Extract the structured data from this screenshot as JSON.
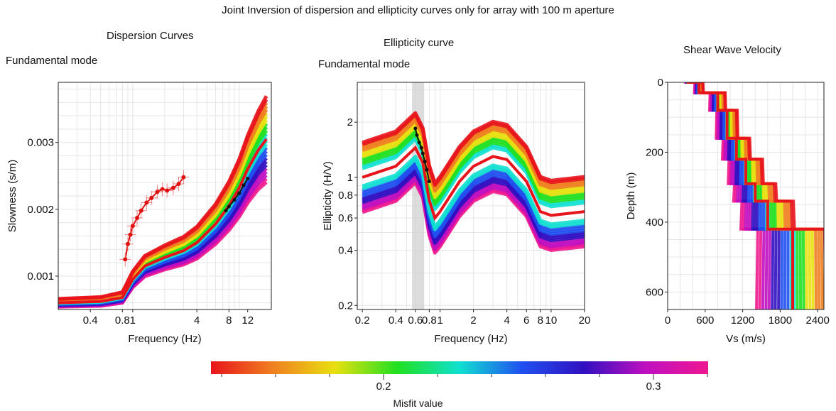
{
  "figure": {
    "title": "Joint Inversion of dispersion and ellipticity curves only for  array with 100 m aperture",
    "colorbar": {
      "label": "Misfit value",
      "ticks": [
        "0.2",
        "0.3"
      ],
      "gradient": [
        "#e8141c",
        "#f08020",
        "#e8e010",
        "#20e020",
        "#10e0d0",
        "#2050f0",
        "#3010c0",
        "#c010c0",
        "#ee1890"
      ]
    }
  },
  "panels": {
    "dispersion": {
      "title": "Dispersion Curves",
      "mode": "Fundamental mode"
    },
    "ellipticity": {
      "title": "Ellipticity curve",
      "mode": "Fundamental mode"
    },
    "vs": {
      "title": "Shear Wave Velocity"
    }
  },
  "chart_data": [
    {
      "type": "line",
      "title": "Dispersion Curves",
      "subtitle": "Fundamental mode",
      "xlabel": "Frequency (Hz)",
      "ylabel": "Slowness (s/m)",
      "xscale": "log",
      "xlim": [
        0.2,
        20
      ],
      "ylim": [
        0.0005,
        0.0039
      ],
      "xticks": [
        "0.4",
        "0.8",
        "1",
        "4",
        "8",
        "12"
      ],
      "yticks": [
        "0.001",
        "0.002",
        "0.003"
      ],
      "grid": true,
      "series": [
        {
          "role": "best-fit model",
          "x": [
            0.2,
            0.5,
            0.8,
            1,
            1.3,
            2,
            3,
            4,
            6,
            8,
            10,
            12,
            15,
            18
          ],
          "y": [
            0.0006,
            0.00062,
            0.00068,
            0.00095,
            0.00115,
            0.00128,
            0.00138,
            0.0015,
            0.00178,
            0.00205,
            0.00232,
            0.0026,
            0.00288,
            0.00305
          ]
        },
        {
          "role": "observed data (with error bars)",
          "x": [
            0.85,
            0.9,
            0.95,
            1,
            1.1,
            1.2,
            1.35,
            1.5,
            1.7,
            1.9,
            2.1,
            2.4,
            2.7,
            3.0
          ],
          "y": [
            0.00125,
            0.00148,
            0.00162,
            0.00175,
            0.00187,
            0.00198,
            0.0021,
            0.00217,
            0.00226,
            0.0023,
            0.00228,
            0.00232,
            0.00238,
            0.00248
          ]
        },
        {
          "role": "observed data (high frequency)",
          "x": [
            7.5,
            8,
            9,
            10,
            11,
            12
          ],
          "y": [
            0.00198,
            0.00204,
            0.00214,
            0.00224,
            0.00236,
            0.00246
          ]
        }
      ]
    },
    {
      "type": "line",
      "title": "Ellipticity curve",
      "subtitle": "Fundamental mode",
      "xlabel": "Frequency (Hz)",
      "ylabel": "Ellipticity (H/V)",
      "xscale": "log",
      "yscale": "log",
      "xlim": [
        0.18,
        20
      ],
      "ylim": [
        0.19,
        3.3
      ],
      "xticks": [
        "0.2",
        "0.4",
        "0.6",
        "0.8",
        "1",
        "2",
        "4",
        "6",
        "8",
        "10",
        "20"
      ],
      "yticks": [
        "0.2",
        "0.4",
        "0.6",
        "0.8",
        "1",
        "2"
      ],
      "grid": true,
      "series": [
        {
          "role": "best-fit model",
          "x": [
            0.2,
            0.4,
            0.6,
            0.7,
            0.8,
            0.9,
            1.0,
            1.5,
            2,
            3,
            4,
            6,
            8,
            10,
            20
          ],
          "y": [
            1.0,
            1.15,
            1.45,
            1.2,
            0.75,
            0.6,
            0.65,
            0.95,
            1.15,
            1.3,
            1.25,
            0.95,
            0.65,
            0.62,
            0.65
          ]
        },
        {
          "role": "observed data",
          "x": [
            0.6,
            0.62,
            0.65,
            0.68,
            0.7,
            0.73,
            0.76,
            0.8
          ],
          "y": [
            1.85,
            1.7,
            1.55,
            1.45,
            1.35,
            1.22,
            1.1,
            0.95
          ]
        }
      ],
      "shaded_band_x": [
        0.56,
        0.72
      ]
    },
    {
      "type": "line",
      "title": "Shear Wave Velocity",
      "xlabel": "Vs (m/s)",
      "ylabel": "Depth (m)",
      "xlim": [
        0,
        2500
      ],
      "ylim": [
        650,
        0
      ],
      "xticks": [
        "0",
        "600",
        "1200",
        "1800",
        "2400"
      ],
      "yticks": [
        "0",
        "200",
        "400",
        "600"
      ],
      "grid": true,
      "series": [
        {
          "role": "best-fit model",
          "vs": [
            300,
            500,
            500,
            800,
            800,
            950,
            950,
            1100,
            1100,
            1250,
            1250,
            1400,
            1400,
            1600,
            1600,
            2000,
            2000
          ],
          "depth": [
            0,
            0,
            30,
            30,
            80,
            80,
            160,
            160,
            220,
            220,
            290,
            290,
            340,
            340,
            420,
            420,
            650
          ]
        }
      ]
    }
  ]
}
